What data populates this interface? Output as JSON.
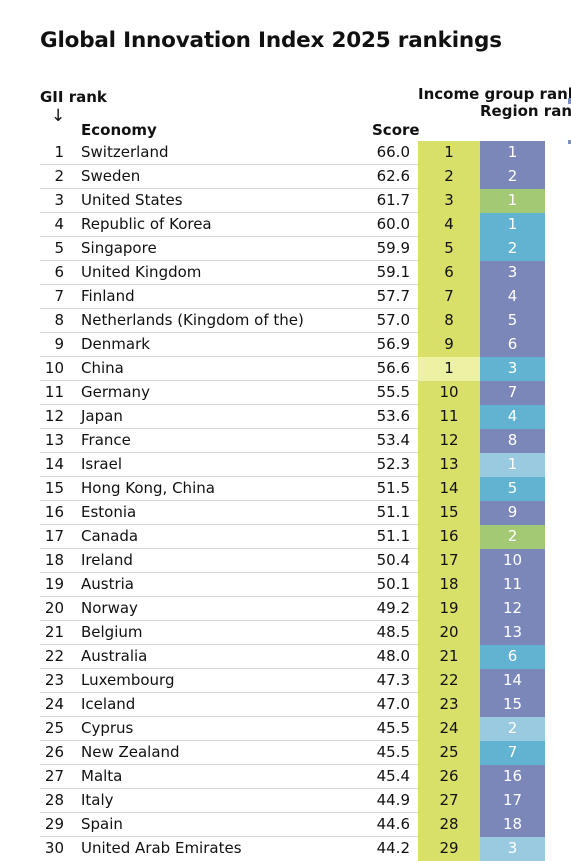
{
  "title": "Global Innovation Index 2025 rankings",
  "headers": {
    "gii_rank": "GII rank",
    "arrow": "↓",
    "economy": "Economy",
    "score": "Score",
    "income_group_rank": "Income group rank",
    "region_rank": "Region rank"
  },
  "colors": {
    "income_bg": "#d9e06a",
    "income_bg_light": "#ecf1a4",
    "region_dark_blue": "#7b87b8",
    "region_teal": "#62b2d2",
    "region_light_blue": "#9acae0",
    "region_green": "#a4c975"
  },
  "rows": [
    {
      "rank": "1",
      "economy": "Switzerland",
      "score": "66.0",
      "income_rank": "1",
      "income_group": "high",
      "region_rank": "1",
      "region_color": "dark_blue"
    },
    {
      "rank": "2",
      "economy": "Sweden",
      "score": "62.6",
      "income_rank": "2",
      "income_group": "high",
      "region_rank": "2",
      "region_color": "dark_blue"
    },
    {
      "rank": "3",
      "economy": "United States",
      "score": "61.7",
      "income_rank": "3",
      "income_group": "high",
      "region_rank": "1",
      "region_color": "green"
    },
    {
      "rank": "4",
      "economy": "Republic of Korea",
      "score": "60.0",
      "income_rank": "4",
      "income_group": "high",
      "region_rank": "1",
      "region_color": "teal"
    },
    {
      "rank": "5",
      "economy": "Singapore",
      "score": "59.9",
      "income_rank": "5",
      "income_group": "high",
      "region_rank": "2",
      "region_color": "teal"
    },
    {
      "rank": "6",
      "economy": "United Kingdom",
      "score": "59.1",
      "income_rank": "6",
      "income_group": "high",
      "region_rank": "3",
      "region_color": "dark_blue"
    },
    {
      "rank": "7",
      "economy": "Finland",
      "score": "57.7",
      "income_rank": "7",
      "income_group": "high",
      "region_rank": "4",
      "region_color": "dark_blue"
    },
    {
      "rank": "8",
      "economy": "Netherlands (Kingdom of the)",
      "score": "57.0",
      "income_rank": "8",
      "income_group": "high",
      "region_rank": "5",
      "region_color": "dark_blue"
    },
    {
      "rank": "9",
      "economy": "Denmark",
      "score": "56.9",
      "income_rank": "9",
      "income_group": "high",
      "region_rank": "6",
      "region_color": "dark_blue"
    },
    {
      "rank": "10",
      "economy": "China",
      "score": "56.6",
      "income_rank": "1",
      "income_group": "upper_middle",
      "region_rank": "3",
      "region_color": "teal"
    },
    {
      "rank": "11",
      "economy": "Germany",
      "score": "55.5",
      "income_rank": "10",
      "income_group": "high",
      "region_rank": "7",
      "region_color": "dark_blue"
    },
    {
      "rank": "12",
      "economy": "Japan",
      "score": "53.6",
      "income_rank": "11",
      "income_group": "high",
      "region_rank": "4",
      "region_color": "teal"
    },
    {
      "rank": "13",
      "economy": "France",
      "score": "53.4",
      "income_rank": "12",
      "income_group": "high",
      "region_rank": "8",
      "region_color": "dark_blue"
    },
    {
      "rank": "14",
      "economy": "Israel",
      "score": "52.3",
      "income_rank": "13",
      "income_group": "high",
      "region_rank": "1",
      "region_color": "light_blue"
    },
    {
      "rank": "15",
      "economy": "Hong Kong, China",
      "score": "51.5",
      "income_rank": "14",
      "income_group": "high",
      "region_rank": "5",
      "region_color": "teal"
    },
    {
      "rank": "16",
      "economy": "Estonia",
      "score": "51.1",
      "income_rank": "15",
      "income_group": "high",
      "region_rank": "9",
      "region_color": "dark_blue"
    },
    {
      "rank": "17",
      "economy": "Canada",
      "score": "51.1",
      "income_rank": "16",
      "income_group": "high",
      "region_rank": "2",
      "region_color": "green"
    },
    {
      "rank": "18",
      "economy": "Ireland",
      "score": "50.4",
      "income_rank": "17",
      "income_group": "high",
      "region_rank": "10",
      "region_color": "dark_blue"
    },
    {
      "rank": "19",
      "economy": "Austria",
      "score": "50.1",
      "income_rank": "18",
      "income_group": "high",
      "region_rank": "11",
      "region_color": "dark_blue"
    },
    {
      "rank": "20",
      "economy": "Norway",
      "score": "49.2",
      "income_rank": "19",
      "income_group": "high",
      "region_rank": "12",
      "region_color": "dark_blue"
    },
    {
      "rank": "21",
      "economy": "Belgium",
      "score": "48.5",
      "income_rank": "20",
      "income_group": "high",
      "region_rank": "13",
      "region_color": "dark_blue"
    },
    {
      "rank": "22",
      "economy": "Australia",
      "score": "48.0",
      "income_rank": "21",
      "income_group": "high",
      "region_rank": "6",
      "region_color": "teal"
    },
    {
      "rank": "23",
      "economy": "Luxembourg",
      "score": "47.3",
      "income_rank": "22",
      "income_group": "high",
      "region_rank": "14",
      "region_color": "dark_blue"
    },
    {
      "rank": "24",
      "economy": "Iceland",
      "score": "47.0",
      "income_rank": "23",
      "income_group": "high",
      "region_rank": "15",
      "region_color": "dark_blue"
    },
    {
      "rank": "25",
      "economy": "Cyprus",
      "score": "45.5",
      "income_rank": "24",
      "income_group": "high",
      "region_rank": "2",
      "region_color": "light_blue"
    },
    {
      "rank": "26",
      "economy": "New Zealand",
      "score": "45.5",
      "income_rank": "25",
      "income_group": "high",
      "region_rank": "7",
      "region_color": "teal"
    },
    {
      "rank": "27",
      "economy": "Malta",
      "score": "45.4",
      "income_rank": "26",
      "income_group": "high",
      "region_rank": "16",
      "region_color": "dark_blue"
    },
    {
      "rank": "28",
      "economy": "Italy",
      "score": "44.9",
      "income_rank": "27",
      "income_group": "high",
      "region_rank": "17",
      "region_color": "dark_blue"
    },
    {
      "rank": "29",
      "economy": "Spain",
      "score": "44.6",
      "income_rank": "28",
      "income_group": "high",
      "region_rank": "18",
      "region_color": "dark_blue"
    },
    {
      "rank": "30",
      "economy": "United Arab Emirates",
      "score": "44.2",
      "income_rank": "29",
      "income_group": "high",
      "region_rank": "3",
      "region_color": "light_blue"
    }
  ]
}
